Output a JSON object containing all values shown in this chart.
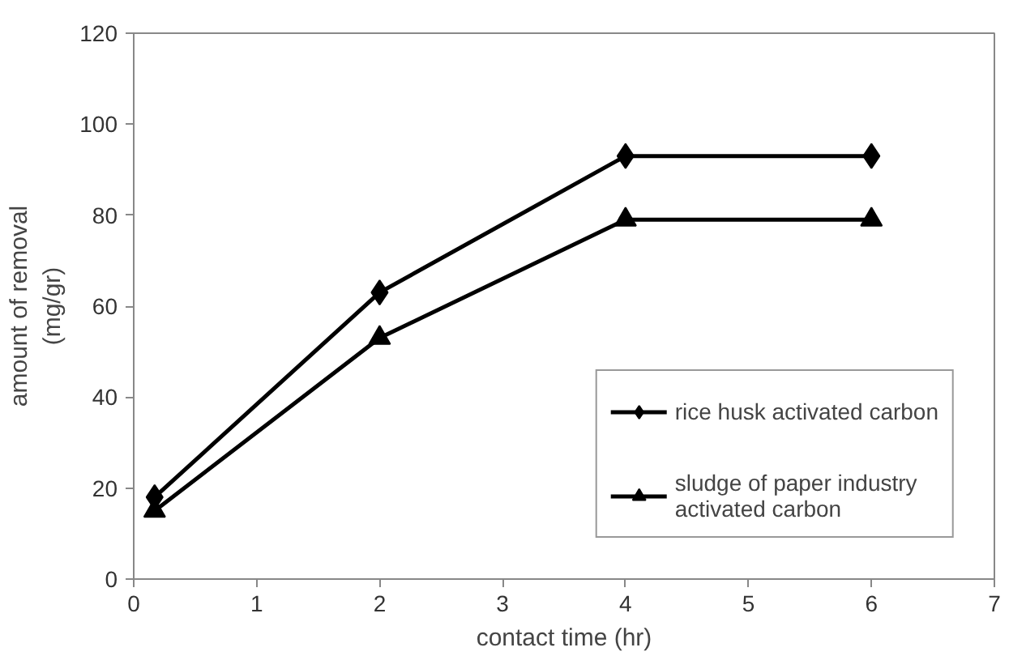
{
  "chart_data": {
    "type": "line",
    "xlabel": "contact time (hr)",
    "ylabel": "amount of removal\n(mg/gr)",
    "x": [
      0.17,
      2,
      4,
      6
    ],
    "series": [
      {
        "name": "rice husk activated carbon",
        "color": "#000000",
        "marker": "diamond",
        "values": [
          18,
          63,
          93,
          93
        ]
      },
      {
        "name": "sludge of paper industry activated carbon",
        "color": "#000000",
        "marker": "triangle",
        "values": [
          15,
          53,
          79,
          79
        ]
      }
    ],
    "xlim": [
      0,
      7
    ],
    "xticks": [
      0,
      1,
      2,
      3,
      4,
      5,
      6,
      7
    ],
    "ylim": [
      0,
      120
    ],
    "yticks": [
      0,
      20,
      40,
      60,
      80,
      100,
      120
    ],
    "grid": false,
    "legend": "bottom right",
    "line_style": "solid"
  }
}
